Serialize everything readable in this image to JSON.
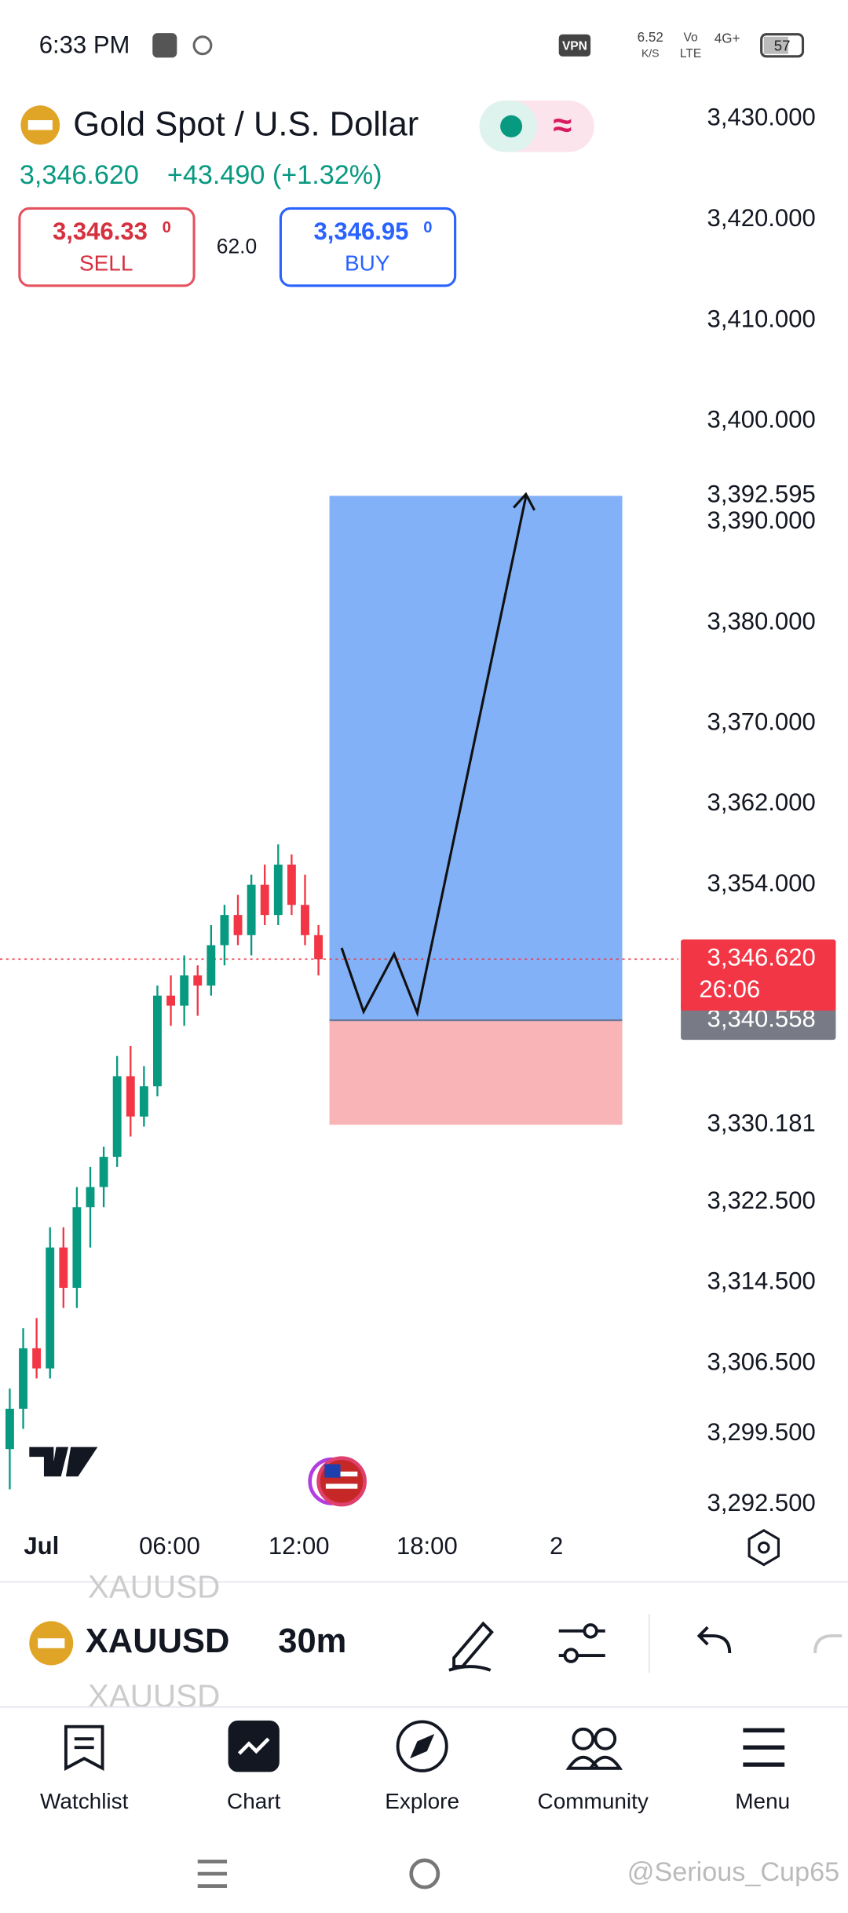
{
  "status": {
    "time": "6:33 PM",
    "vpn": "VPN",
    "speed": "6.52",
    "speed_unit": "K/S",
    "volte_top": "Vo",
    "volte_bottom": "LTE",
    "network": "4G+",
    "battery": "57"
  },
  "header": {
    "title": "Gold Spot / U.S. Dollar",
    "price": "3,346.620",
    "change": "+43.490 (+1.32%)",
    "sell": {
      "price": "3,346.33",
      "pip": "0",
      "label": "SELL"
    },
    "spread": "62.0",
    "buy": {
      "price": "3,346.95",
      "pip": "0",
      "label": "BUY"
    }
  },
  "chart_data": {
    "type": "candlestick",
    "open": [
      3298,
      3302,
      3308,
      3306,
      3318,
      3314,
      3322,
      3324,
      3327,
      3335,
      3331,
      3334,
      3343,
      3342,
      3345,
      3344,
      3348,
      3351,
      3349,
      3354,
      3351,
      3356,
      3352,
      3349
    ],
    "high": [
      3304,
      3310,
      3311,
      3320,
      3320,
      3324,
      3326,
      3328,
      3337,
      3338,
      3336,
      3344,
      3345,
      3347,
      3346,
      3350,
      3352,
      3353,
      3355,
      3356,
      3358,
      3357,
      3355,
      3350
    ],
    "low": [
      3294,
      3300,
      3305,
      3305,
      3312,
      3312,
      3318,
      3322,
      3326,
      3329,
      3330,
      3333,
      3340,
      3340,
      3341,
      3343,
      3346,
      3348,
      3347,
      3350,
      3350,
      3351,
      3348,
      3345
    ],
    "close": [
      3302,
      3308,
      3306,
      3318,
      3314,
      3322,
      3324,
      3327,
      3335,
      3331,
      3334,
      3343,
      3342,
      3345,
      3344,
      3348,
      3351,
      3349,
      3354,
      3351,
      3356,
      3352,
      3349,
      3346.62
    ],
    "up_color": "#089981",
    "down_color": "#f23645",
    "ylim": [
      3290.9,
      3434.5
    ],
    "yticks": [
      {
        "value": 3430,
        "label": "3,430.000"
      },
      {
        "value": 3420,
        "label": "3,420.000"
      },
      {
        "value": 3410,
        "label": "3,410.000"
      },
      {
        "value": 3400,
        "label": "3,400.000"
      },
      {
        "value": 3390,
        "label": "3,390.000"
      },
      {
        "value": 3380,
        "label": "3,380.000"
      },
      {
        "value": 3370,
        "label": "3,370.000"
      },
      {
        "value": 3362,
        "label": "3,362.000"
      },
      {
        "value": 3354,
        "label": "3,354.000"
      },
      {
        "value": 3322.5,
        "label": "3,322.500"
      },
      {
        "value": 3314.5,
        "label": "3,314.500"
      },
      {
        "value": 3306.5,
        "label": "3,306.500"
      },
      {
        "value": 3299.5,
        "label": "3,299.500"
      },
      {
        "value": 3292.5,
        "label": "3,292.500"
      }
    ],
    "xlabels": [
      "Jul",
      "06:00",
      "12:00",
      "18:00",
      "2"
    ],
    "current": {
      "value": 3346.62,
      "label": "3,346.620",
      "countdown": "26:06"
    },
    "position": {
      "target": 3392.595,
      "target_label": "3,392.595",
      "entry": 3340.558,
      "entry_label": "3,340.558",
      "stop": 3330.181,
      "stop_label": "3,330.181"
    }
  },
  "toolbar": {
    "symbol": "XAUUSD",
    "interval": "30m"
  },
  "nav": [
    "Watchlist",
    "Chart",
    "Explore",
    "Community",
    "Menu"
  ],
  "watermark": "@Serious_Cup65"
}
